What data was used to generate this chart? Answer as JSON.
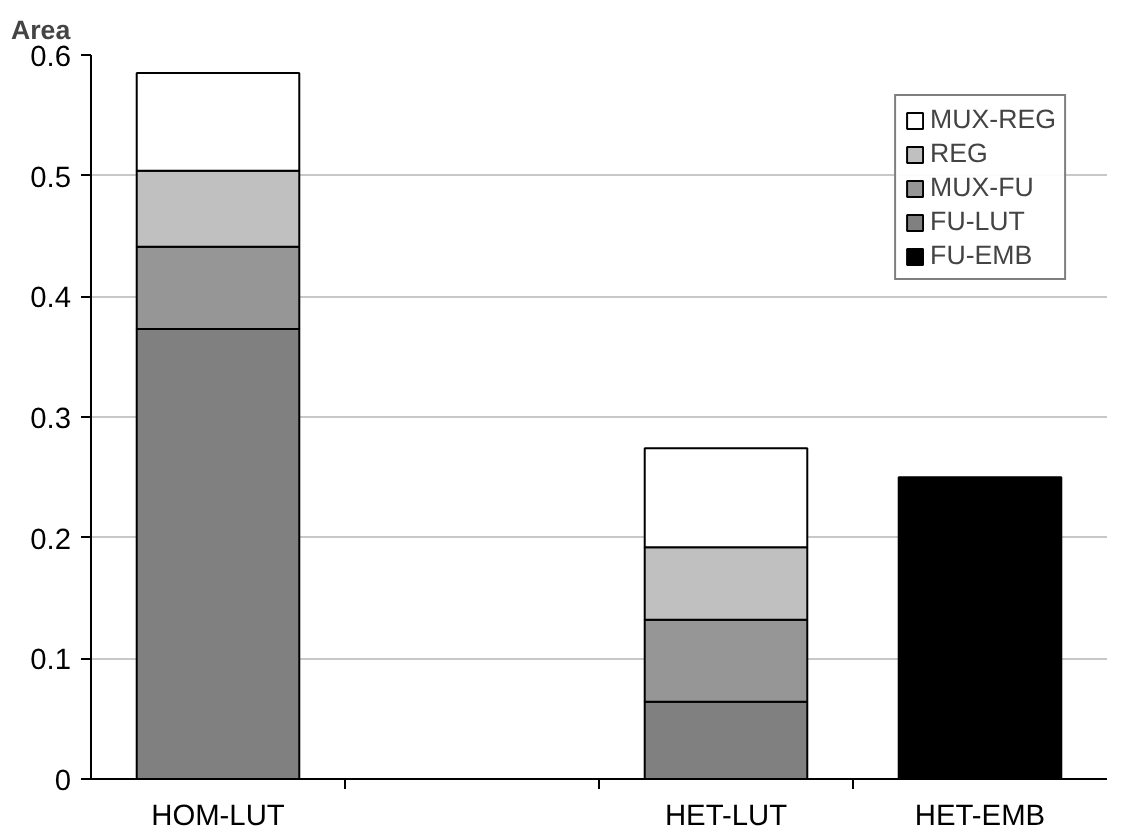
{
  "chart_data": {
    "type": "bar",
    "stacked": true,
    "ylabel": "Area",
    "categories": [
      "HOM-LUT",
      null,
      "HET-LUT",
      "HET-EMB"
    ],
    "series": [
      {
        "name": "FU-EMB",
        "color": "#000000",
        "values": [
          null,
          null,
          null,
          0.25
        ]
      },
      {
        "name": "FU-LUT",
        "color": "#808080",
        "values": [
          0.373,
          null,
          0.064,
          null
        ]
      },
      {
        "name": "MUX-FU",
        "color": "#969696",
        "values": [
          0.068,
          null,
          0.068,
          null
        ]
      },
      {
        "name": "REG",
        "color": "#c0c0c0",
        "values": [
          0.063,
          null,
          0.06,
          null
        ]
      },
      {
        "name": "MUX-REG",
        "color": "#ffffff",
        "values": [
          0.081,
          null,
          0.082,
          null
        ]
      }
    ],
    "ylim": [
      0,
      0.6
    ],
    "yticks": [
      0,
      0.1,
      0.2,
      0.3,
      0.4,
      0.5,
      0.6
    ],
    "grid": "y",
    "legend": "top right"
  }
}
